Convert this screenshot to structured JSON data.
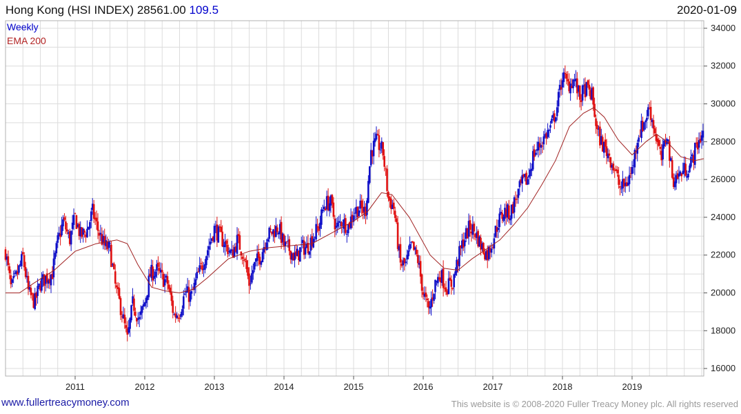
{
  "header": {
    "title": "Hong Kong (HSI INDEX) 28561.00",
    "change": "109.5",
    "date": "2020-01-09"
  },
  "legend": {
    "weekly": "Weekly",
    "ema": "EMA 200"
  },
  "footer": {
    "left": "www.fullertreacymoney.com",
    "right": "This website is © 2008-2020 Fuller Treacy Money plc. All rights reserved"
  },
  "colors": {
    "up": "#1010c8",
    "down": "#e01010",
    "ema": "#a02020",
    "grid": "#dcdcdc"
  },
  "chart_data": {
    "type": "candlestick",
    "title": "Hong Kong (HSI INDEX)",
    "frequency": "Weekly",
    "overlay": "EMA 200",
    "xlim": [
      2010.0,
      2020.03
    ],
    "ylim": [
      15600,
      34400
    ],
    "x_ticks": [
      2011,
      2012,
      2013,
      2014,
      2015,
      2016,
      2017,
      2018,
      2019
    ],
    "y_ticks": [
      16000,
      18000,
      20000,
      22000,
      24000,
      26000,
      28000,
      30000,
      32000,
      34000
    ],
    "price_path": [
      [
        2010.0,
        22200
      ],
      [
        2010.08,
        20200
      ],
      [
        2010.17,
        21000
      ],
      [
        2010.25,
        21900
      ],
      [
        2010.33,
        20000
      ],
      [
        2010.42,
        19500
      ],
      [
        2010.5,
        20500
      ],
      [
        2010.58,
        20800
      ],
      [
        2010.67,
        21000
      ],
      [
        2010.75,
        22700
      ],
      [
        2010.83,
        23800
      ],
      [
        2010.92,
        22800
      ],
      [
        2011.0,
        24000
      ],
      [
        2011.08,
        23000
      ],
      [
        2011.17,
        23300
      ],
      [
        2011.25,
        24300
      ],
      [
        2011.33,
        23300
      ],
      [
        2011.42,
        22500
      ],
      [
        2011.5,
        22300
      ],
      [
        2011.58,
        20300
      ],
      [
        2011.67,
        19000
      ],
      [
        2011.75,
        17500
      ],
      [
        2011.83,
        19500
      ],
      [
        2011.92,
        18500
      ],
      [
        2012.0,
        19500
      ],
      [
        2012.08,
        21000
      ],
      [
        2012.17,
        21200
      ],
      [
        2012.25,
        20800
      ],
      [
        2012.33,
        20500
      ],
      [
        2012.42,
        18800
      ],
      [
        2012.5,
        19000
      ],
      [
        2012.58,
        20000
      ],
      [
        2012.67,
        19800
      ],
      [
        2012.75,
        20800
      ],
      [
        2012.83,
        21500
      ],
      [
        2012.92,
        22500
      ],
      [
        2013.0,
        23400
      ],
      [
        2013.08,
        23000
      ],
      [
        2013.17,
        22500
      ],
      [
        2013.25,
        22000
      ],
      [
        2013.33,
        22800
      ],
      [
        2013.42,
        22000
      ],
      [
        2013.5,
        20500
      ],
      [
        2013.58,
        21500
      ],
      [
        2013.67,
        22000
      ],
      [
        2013.75,
        23000
      ],
      [
        2013.83,
        23200
      ],
      [
        2013.92,
        23500
      ],
      [
        2014.0,
        22500
      ],
      [
        2014.08,
        22300
      ],
      [
        2014.17,
        21800
      ],
      [
        2014.25,
        22400
      ],
      [
        2014.33,
        22400
      ],
      [
        2014.42,
        23000
      ],
      [
        2014.5,
        23500
      ],
      [
        2014.58,
        24700
      ],
      [
        2014.67,
        24800
      ],
      [
        2014.75,
        23400
      ],
      [
        2014.83,
        23800
      ],
      [
        2014.92,
        23500
      ],
      [
        2015.0,
        24300
      ],
      [
        2015.08,
        24500
      ],
      [
        2015.17,
        24300
      ],
      [
        2015.25,
        27500
      ],
      [
        2015.33,
        28000
      ],
      [
        2015.42,
        27500
      ],
      [
        2015.5,
        25000
      ],
      [
        2015.58,
        24500
      ],
      [
        2015.67,
        21500
      ],
      [
        2015.75,
        21500
      ],
      [
        2015.83,
        22500
      ],
      [
        2015.92,
        21800
      ],
      [
        2016.0,
        20000
      ],
      [
        2016.08,
        19000
      ],
      [
        2016.17,
        20500
      ],
      [
        2016.25,
        21000
      ],
      [
        2016.33,
        20300
      ],
      [
        2016.42,
        20500
      ],
      [
        2016.5,
        21800
      ],
      [
        2016.58,
        22800
      ],
      [
        2016.67,
        23500
      ],
      [
        2016.75,
        23200
      ],
      [
        2016.83,
        22500
      ],
      [
        2016.92,
        22000
      ],
      [
        2017.0,
        22800
      ],
      [
        2017.08,
        23800
      ],
      [
        2017.17,
        24300
      ],
      [
        2017.25,
        24200
      ],
      [
        2017.33,
        25000
      ],
      [
        2017.42,
        25800
      ],
      [
        2017.5,
        26000
      ],
      [
        2017.58,
        27300
      ],
      [
        2017.67,
        27800
      ],
      [
        2017.75,
        28300
      ],
      [
        2017.83,
        28700
      ],
      [
        2017.92,
        29800
      ],
      [
        2018.0,
        31500
      ],
      [
        2018.08,
        31000
      ],
      [
        2018.17,
        31300
      ],
      [
        2018.25,
        30300
      ],
      [
        2018.33,
        30800
      ],
      [
        2018.42,
        30500
      ],
      [
        2018.5,
        28500
      ],
      [
        2018.58,
        27800
      ],
      [
        2018.67,
        27300
      ],
      [
        2018.75,
        26500
      ],
      [
        2018.83,
        25500
      ],
      [
        2018.92,
        25800
      ],
      [
        2019.0,
        26500
      ],
      [
        2019.08,
        28300
      ],
      [
        2019.17,
        29000
      ],
      [
        2019.25,
        29800
      ],
      [
        2019.33,
        28500
      ],
      [
        2019.42,
        27000
      ],
      [
        2019.5,
        28500
      ],
      [
        2019.58,
        26000
      ],
      [
        2019.67,
        26200
      ],
      [
        2019.75,
        26500
      ],
      [
        2019.83,
        26700
      ],
      [
        2019.92,
        27700
      ],
      [
        2020.0,
        28400
      ],
      [
        2020.03,
        28561
      ]
    ],
    "ema_200": [
      [
        2010.0,
        20000
      ],
      [
        2010.2,
        20000
      ],
      [
        2010.4,
        20500
      ],
      [
        2010.7,
        21200
      ],
      [
        2011.0,
        22200
      ],
      [
        2011.3,
        22600
      ],
      [
        2011.6,
        22800
      ],
      [
        2011.75,
        22600
      ],
      [
        2011.9,
        21500
      ],
      [
        2012.1,
        20300
      ],
      [
        2012.3,
        20100
      ],
      [
        2012.5,
        20000
      ],
      [
        2012.7,
        20200
      ],
      [
        2012.9,
        20800
      ],
      [
        2013.2,
        21800
      ],
      [
        2013.5,
        22200
      ],
      [
        2013.8,
        22400
      ],
      [
        2014.1,
        22500
      ],
      [
        2014.4,
        22600
      ],
      [
        2014.7,
        23200
      ],
      [
        2015.0,
        23800
      ],
      [
        2015.2,
        24300
      ],
      [
        2015.4,
        25300
      ],
      [
        2015.55,
        25200
      ],
      [
        2015.8,
        24000
      ],
      [
        2016.1,
        22000
      ],
      [
        2016.3,
        21300
      ],
      [
        2016.5,
        21200
      ],
      [
        2016.7,
        21800
      ],
      [
        2016.9,
        22300
      ],
      [
        2017.1,
        22800
      ],
      [
        2017.3,
        23600
      ],
      [
        2017.5,
        24500
      ],
      [
        2017.7,
        25700
      ],
      [
        2017.9,
        27000
      ],
      [
        2018.1,
        28800
      ],
      [
        2018.3,
        29500
      ],
      [
        2018.45,
        29800
      ],
      [
        2018.6,
        29300
      ],
      [
        2018.8,
        28100
      ],
      [
        2019.0,
        27300
      ],
      [
        2019.2,
        28000
      ],
      [
        2019.35,
        28400
      ],
      [
        2019.5,
        28000
      ],
      [
        2019.7,
        27200
      ],
      [
        2019.9,
        27000
      ],
      [
        2020.03,
        27100
      ]
    ]
  }
}
